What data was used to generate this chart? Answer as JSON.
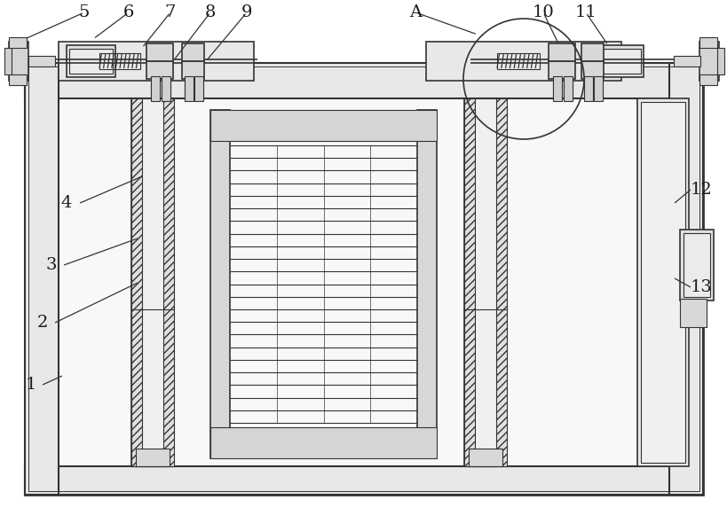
{
  "bg_color": "#ffffff",
  "line_color": "#333333",
  "lw_main": 1.8,
  "lw_thin": 0.8,
  "lw_med": 1.2,
  "fig_w": 8.19,
  "fig_h": 5.99,
  "dpi": 100
}
